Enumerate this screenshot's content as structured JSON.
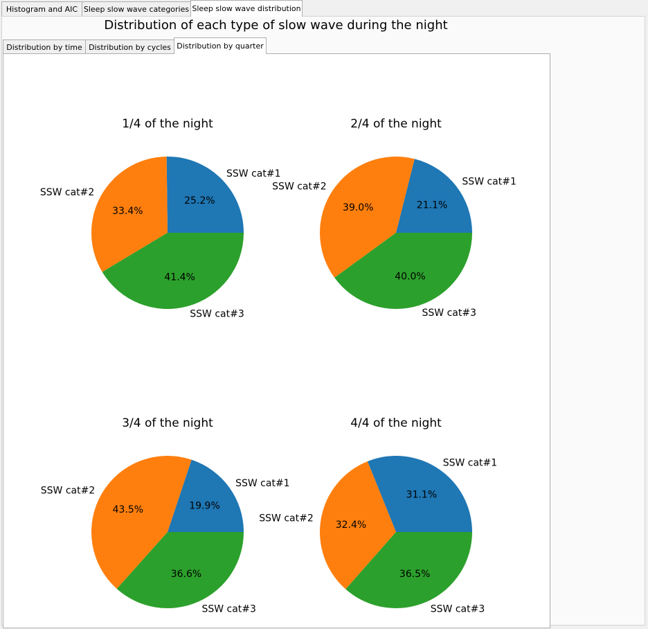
{
  "tabs": [
    {
      "label": "Histogram and AIC"
    },
    {
      "label": "Sleep slow wave categories"
    },
    {
      "label": "Sleep slow wave distribution"
    }
  ],
  "figure_title": "Distribution of each type of slow wave during the night",
  "subtabs": [
    {
      "label": "Distribution by time"
    },
    {
      "label": "Distribution by cycles"
    },
    {
      "label": "Distribution by quarter"
    }
  ],
  "colors": {
    "cat1": "#1f77b4",
    "cat2": "#ff7f0e",
    "cat3": "#2ca02c"
  },
  "chart_data": [
    {
      "type": "pie",
      "title": "1/4 of the night",
      "labels": [
        "SSW cat#1",
        "SSW cat#2",
        "SSW cat#3"
      ],
      "values": [
        25.2,
        33.4,
        41.4
      ],
      "pct_labels": [
        "25.2%",
        "33.4%",
        "41.4%"
      ]
    },
    {
      "type": "pie",
      "title": "2/4 of the night",
      "labels": [
        "SSW cat#1",
        "SSW cat#2",
        "SSW cat#3"
      ],
      "values": [
        21.1,
        39.0,
        40.0
      ],
      "pct_labels": [
        "21.1%",
        "39.0%",
        "40.0%"
      ]
    },
    {
      "type": "pie",
      "title": "3/4 of the night",
      "labels": [
        "SSW cat#1",
        "SSW cat#2",
        "SSW cat#3"
      ],
      "values": [
        19.9,
        43.5,
        36.6
      ],
      "pct_labels": [
        "19.9%",
        "43.5%",
        "36.6%"
      ]
    },
    {
      "type": "pie",
      "title": "4/4 of the night",
      "labels": [
        "SSW cat#1",
        "SSW cat#2",
        "SSW cat#3"
      ],
      "values": [
        31.1,
        32.4,
        36.5
      ],
      "pct_labels": [
        "31.1%",
        "32.4%",
        "36.5%"
      ]
    }
  ]
}
